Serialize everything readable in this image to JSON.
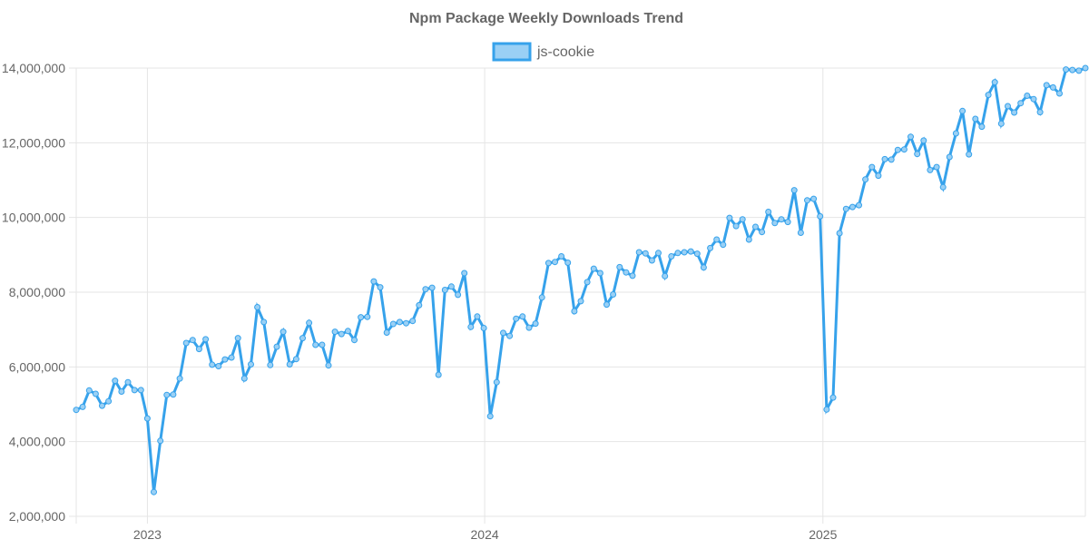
{
  "chart_data": {
    "type": "line",
    "title": "Npm Package Weekly Downloads Trend",
    "xlabel": "",
    "ylabel": "",
    "x_ticks": [
      "2023",
      "2024",
      "2025"
    ],
    "y_ticks": [
      "2,000,000",
      "4,000,000",
      "6,000,000",
      "8,000,000",
      "10,000,000",
      "12,000,000",
      "14,000,000"
    ],
    "ylim": [
      2000000,
      14000000
    ],
    "grid": true,
    "legend_position": "top-center",
    "colors": {
      "line": "#36a2eb",
      "fill": "#9ad0f5",
      "grid": "#e5e5e5",
      "text": "#666666"
    },
    "series": [
      {
        "name": "js-cookie",
        "x_start": "2022-10-16",
        "x_step_days": 7,
        "values": [
          4850000,
          4930000,
          5370000,
          5280000,
          4960000,
          5080000,
          5630000,
          5340000,
          5590000,
          5380000,
          5380000,
          4620000,
          2650000,
          4020000,
          5250000,
          5260000,
          5690000,
          6640000,
          6720000,
          6480000,
          6740000,
          6060000,
          6020000,
          6200000,
          6250000,
          6770000,
          5690000,
          6070000,
          7600000,
          7200000,
          6050000,
          6540000,
          6940000,
          6070000,
          6210000,
          6770000,
          7180000,
          6590000,
          6590000,
          6040000,
          6940000,
          6880000,
          6960000,
          6720000,
          7330000,
          7340000,
          8290000,
          8130000,
          6920000,
          7150000,
          7200000,
          7170000,
          7230000,
          7650000,
          8080000,
          8120000,
          5790000,
          8060000,
          8150000,
          7930000,
          8510000,
          7070000,
          7350000,
          7040000,
          4680000,
          5590000,
          6910000,
          6830000,
          7290000,
          7350000,
          7050000,
          7160000,
          7860000,
          8780000,
          8810000,
          8960000,
          8790000,
          7490000,
          7760000,
          8270000,
          8630000,
          8510000,
          7670000,
          7940000,
          8670000,
          8530000,
          8440000,
          9070000,
          9040000,
          8850000,
          9050000,
          8430000,
          8960000,
          9050000,
          9070000,
          9090000,
          9030000,
          8660000,
          9180000,
          9410000,
          9270000,
          9990000,
          9770000,
          9950000,
          9410000,
          9750000,
          9610000,
          10150000,
          9850000,
          9950000,
          9880000,
          10730000,
          9590000,
          10460000,
          10500000,
          10030000,
          4860000,
          5180000,
          9580000,
          10230000,
          10280000,
          10330000,
          11020000,
          11350000,
          11120000,
          11560000,
          11550000,
          11810000,
          11820000,
          12160000,
          11700000,
          12060000,
          11270000,
          11350000,
          10810000,
          11620000,
          12250000,
          12850000,
          11690000,
          12640000,
          12430000,
          13280000,
          13620000,
          12510000,
          12980000,
          12810000,
          13060000,
          13260000,
          13170000,
          12820000,
          13540000,
          13480000,
          13320000,
          13960000,
          13950000,
          13930000,
          14000000
        ]
      }
    ]
  }
}
